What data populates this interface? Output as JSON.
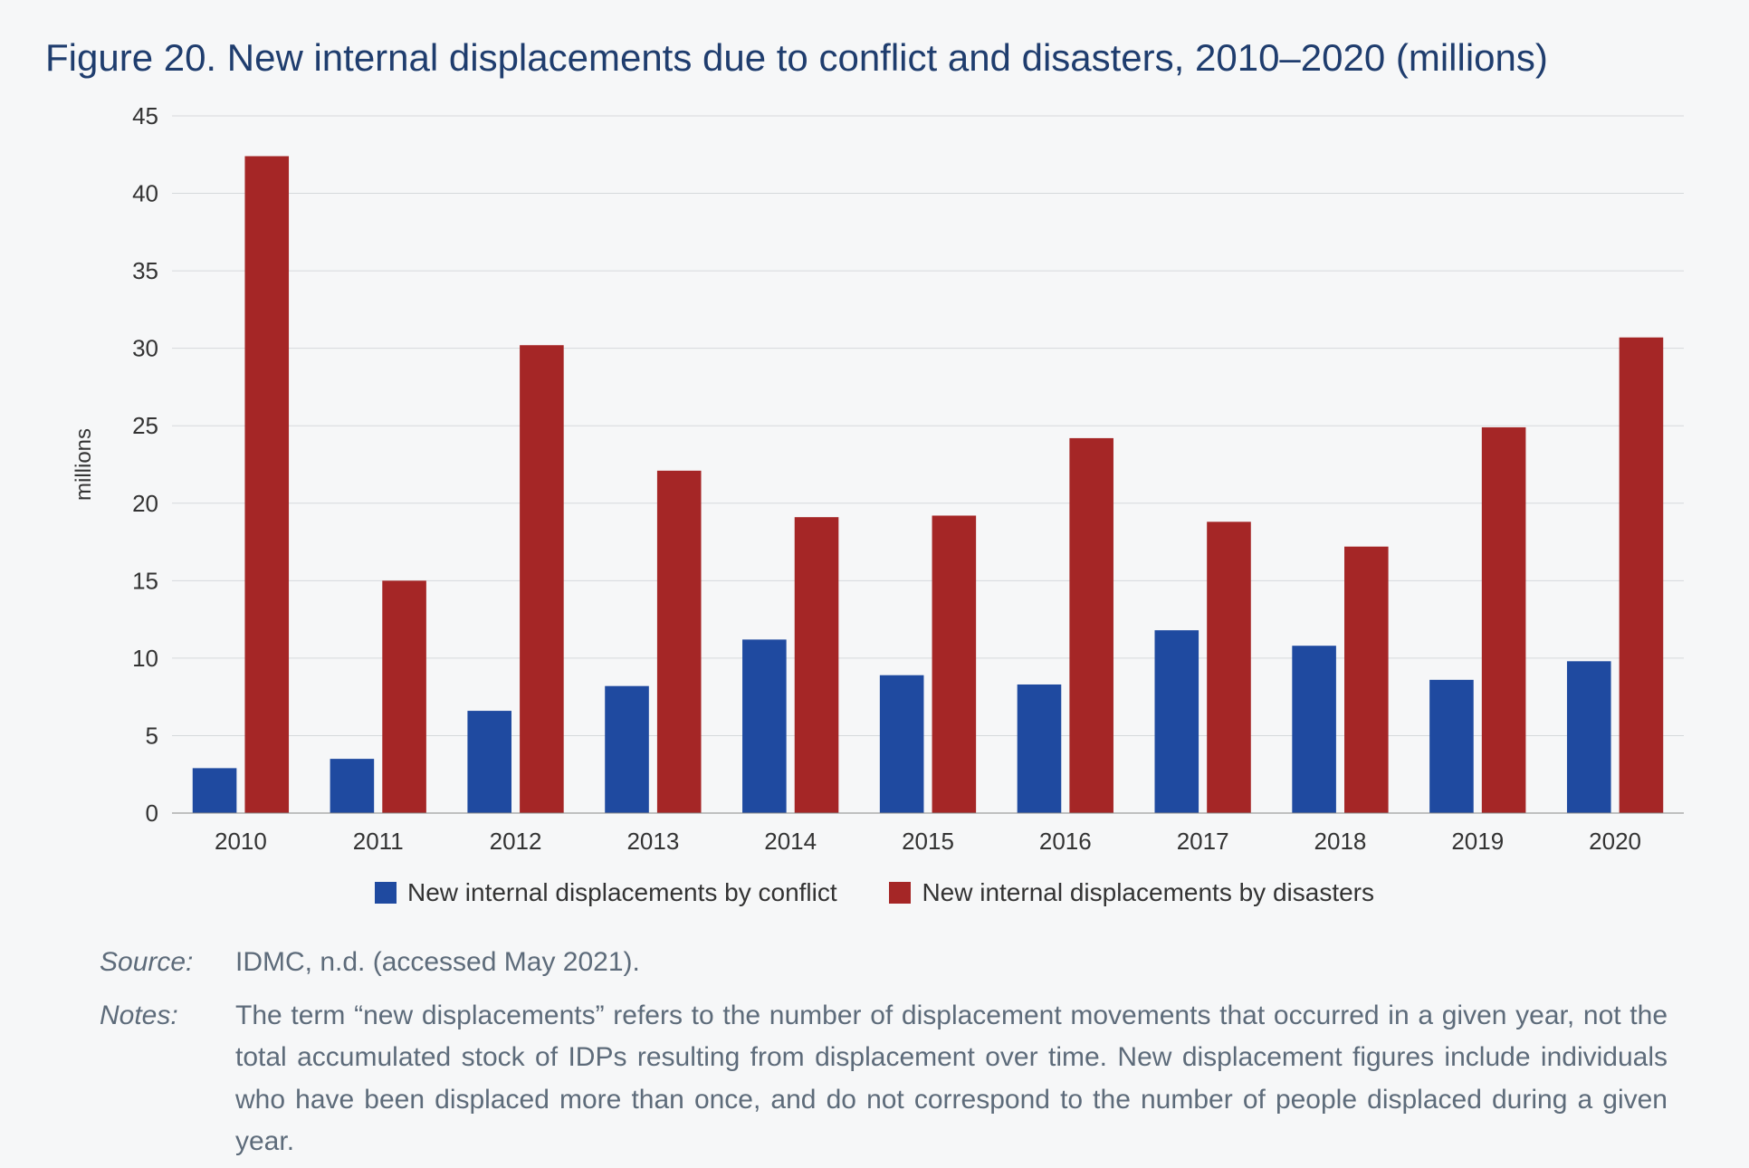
{
  "title": "Figure 20. New internal displacements due to conflict and disasters, 2010–2020 (millions)",
  "chart": {
    "type": "grouped-bar",
    "categories": [
      "2010",
      "2011",
      "2012",
      "2013",
      "2014",
      "2015",
      "2016",
      "2017",
      "2018",
      "2019",
      "2020"
    ],
    "series": [
      {
        "name": "New internal displacements by conflict",
        "color": "#1f4aa0",
        "values": [
          2.9,
          3.5,
          6.6,
          8.2,
          11.2,
          8.9,
          8.3,
          11.8,
          10.8,
          8.6,
          9.8
        ]
      },
      {
        "name": "New internal displacements by disasters",
        "color": "#a52626",
        "values": [
          42.4,
          15.0,
          30.2,
          22.1,
          19.1,
          19.2,
          24.2,
          18.8,
          17.2,
          24.9,
          30.7
        ]
      }
    ],
    "y_axis": {
      "title": "millions",
      "min": 0,
      "max": 45,
      "tick_step": 5,
      "ticks": [
        0,
        5,
        10,
        15,
        20,
        25,
        30,
        35,
        40,
        45
      ]
    },
    "grid_color": "#d6d9dc",
    "background_color": "#f6f7f8",
    "tick_font_size": 26,
    "axis_title_font_size": 24,
    "bar_group_gap_ratio": 0.3,
    "bar_inner_gap_ratio": 0.06
  },
  "legend": {
    "items": [
      {
        "label": "New internal displacements by conflict",
        "color": "#1f4aa0"
      },
      {
        "label": "New internal displacements by disasters",
        "color": "#a52626"
      }
    ]
  },
  "footer": {
    "source_label": "Source:",
    "source_text": "IDMC, n.d. (accessed May 2021).",
    "notes_label": "Notes:",
    "notes_text": "The term “new displacements” refers to the number of displacement movements that occurred in a given year, not the total accumulated stock of IDPs resulting from displacement over time. New displacement figures include individuals who have been displaced more than once, and do not correspond to the number of people displaced during a given year."
  }
}
